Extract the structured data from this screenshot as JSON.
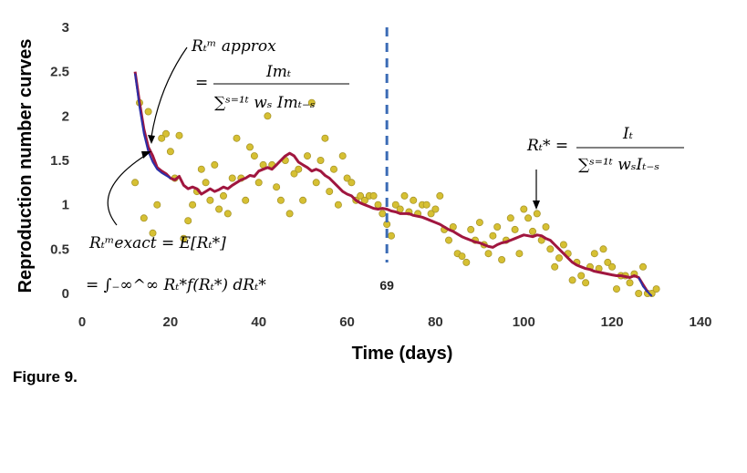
{
  "chart_data": {
    "type": "scatter",
    "xlabel": "Time (days)",
    "ylabel": "Reproduction number curves",
    "xlim": [
      0,
      140
    ],
    "ylim": [
      0,
      3
    ],
    "xticks": [
      "0",
      "20",
      "40",
      "60",
      "80",
      "100",
      "120",
      "140"
    ],
    "yticks": [
      "0",
      "0.5",
      "1",
      "1.5",
      "2",
      "2.5",
      "3"
    ],
    "grid": false,
    "vline": {
      "x": 69,
      "label": "69",
      "color": "#3b6bb5"
    },
    "scatter_points": [
      [
        12,
        1.25
      ],
      [
        13,
        2.15
      ],
      [
        14,
        0.85
      ],
      [
        15,
        2.05
      ],
      [
        16,
        0.68
      ],
      [
        17,
        1.0
      ],
      [
        18,
        1.75
      ],
      [
        19,
        1.8
      ],
      [
        20,
        1.6
      ],
      [
        21,
        1.3
      ],
      [
        22,
        1.78
      ],
      [
        23,
        0.62
      ],
      [
        24,
        0.82
      ],
      [
        25,
        1.0
      ],
      [
        26,
        1.15
      ],
      [
        27,
        1.4
      ],
      [
        28,
        1.25
      ],
      [
        29,
        1.05
      ],
      [
        30,
        1.45
      ],
      [
        31,
        0.95
      ],
      [
        32,
        1.1
      ],
      [
        33,
        0.9
      ],
      [
        34,
        1.3
      ],
      [
        35,
        1.75
      ],
      [
        36,
        1.3
      ],
      [
        37,
        1.05
      ],
      [
        38,
        1.65
      ],
      [
        39,
        1.55
      ],
      [
        40,
        1.25
      ],
      [
        41,
        1.45
      ],
      [
        42,
        2.0
      ],
      [
        43,
        1.45
      ],
      [
        44,
        1.2
      ],
      [
        45,
        1.05
      ],
      [
        46,
        1.5
      ],
      [
        47,
        0.9
      ],
      [
        48,
        1.35
      ],
      [
        49,
        1.4
      ],
      [
        50,
        1.05
      ],
      [
        51,
        1.55
      ],
      [
        52,
        2.15
      ],
      [
        53,
        1.25
      ],
      [
        54,
        1.5
      ],
      [
        55,
        1.75
      ],
      [
        56,
        1.15
      ],
      [
        57,
        1.4
      ],
      [
        58,
        1.0
      ],
      [
        59,
        1.55
      ],
      [
        60,
        1.3
      ],
      [
        61,
        1.25
      ],
      [
        62,
        1.05
      ],
      [
        63,
        1.1
      ],
      [
        64,
        1.05
      ],
      [
        65,
        1.1
      ],
      [
        66,
        1.1
      ],
      [
        67,
        1.0
      ],
      [
        68,
        0.9
      ],
      [
        69,
        0.78
      ],
      [
        70,
        0.65
      ],
      [
        71,
        1.0
      ],
      [
        72,
        0.95
      ],
      [
        73,
        1.1
      ],
      [
        74,
        0.92
      ],
      [
        75,
        1.05
      ],
      [
        76,
        0.9
      ],
      [
        77,
        1.0
      ],
      [
        78,
        1.0
      ],
      [
        79,
        0.9
      ],
      [
        80,
        0.95
      ],
      [
        81,
        1.1
      ],
      [
        82,
        0.72
      ],
      [
        83,
        0.6
      ],
      [
        84,
        0.75
      ],
      [
        85,
        0.45
      ],
      [
        86,
        0.42
      ],
      [
        87,
        0.35
      ],
      [
        88,
        0.72
      ],
      [
        89,
        0.6
      ],
      [
        90,
        0.8
      ],
      [
        91,
        0.55
      ],
      [
        92,
        0.45
      ],
      [
        93,
        0.65
      ],
      [
        94,
        0.75
      ],
      [
        95,
        0.38
      ],
      [
        96,
        0.6
      ],
      [
        97,
        0.85
      ],
      [
        98,
        0.72
      ],
      [
        99,
        0.45
      ],
      [
        100,
        0.95
      ],
      [
        101,
        0.85
      ],
      [
        102,
        0.7
      ],
      [
        103,
        0.9
      ],
      [
        104,
        0.6
      ],
      [
        105,
        0.75
      ],
      [
        106,
        0.5
      ],
      [
        107,
        0.3
      ],
      [
        108,
        0.4
      ],
      [
        109,
        0.55
      ],
      [
        110,
        0.45
      ],
      [
        111,
        0.15
      ],
      [
        112,
        0.35
      ],
      [
        113,
        0.2
      ],
      [
        114,
        0.12
      ],
      [
        115,
        0.3
      ],
      [
        116,
        0.45
      ],
      [
        117,
        0.28
      ],
      [
        118,
        0.5
      ],
      [
        119,
        0.35
      ],
      [
        120,
        0.3
      ],
      [
        121,
        0.05
      ],
      [
        122,
        0.2
      ],
      [
        123,
        0.2
      ],
      [
        124,
        0.12
      ],
      [
        125,
        0.22
      ],
      [
        126,
        0.0
      ],
      [
        127,
        0.3
      ],
      [
        128,
        0.0
      ],
      [
        129,
        0.0
      ],
      [
        130,
        0.05
      ]
    ],
    "series": [
      {
        "color": "#a0163f",
        "points": [
          [
            12,
            2.5
          ],
          [
            13,
            2.15
          ],
          [
            14,
            1.85
          ],
          [
            15,
            1.65
          ],
          [
            16,
            1.55
          ],
          [
            17,
            1.42
          ],
          [
            18,
            1.38
          ],
          [
            19,
            1.35
          ],
          [
            20,
            1.3
          ],
          [
            21,
            1.28
          ],
          [
            22,
            1.32
          ],
          [
            23,
            1.22
          ],
          [
            24,
            1.18
          ],
          [
            25,
            1.2
          ],
          [
            26,
            1.18
          ],
          [
            27,
            1.12
          ],
          [
            28,
            1.15
          ],
          [
            29,
            1.18
          ],
          [
            30,
            1.15
          ],
          [
            31,
            1.17
          ],
          [
            32,
            1.2
          ],
          [
            33,
            1.18
          ],
          [
            34,
            1.22
          ],
          [
            35,
            1.25
          ],
          [
            36,
            1.28
          ],
          [
            37,
            1.3
          ],
          [
            38,
            1.33
          ],
          [
            39,
            1.32
          ],
          [
            40,
            1.38
          ],
          [
            41,
            1.4
          ],
          [
            42,
            1.42
          ],
          [
            43,
            1.4
          ],
          [
            44,
            1.45
          ],
          [
            45,
            1.5
          ],
          [
            46,
            1.55
          ],
          [
            47,
            1.58
          ],
          [
            48,
            1.55
          ],
          [
            49,
            1.48
          ],
          [
            50,
            1.45
          ],
          [
            51,
            1.42
          ],
          [
            52,
            1.38
          ],
          [
            53,
            1.4
          ],
          [
            54,
            1.38
          ],
          [
            55,
            1.33
          ],
          [
            56,
            1.3
          ],
          [
            57,
            1.25
          ],
          [
            58,
            1.2
          ],
          [
            59,
            1.15
          ],
          [
            60,
            1.12
          ],
          [
            61,
            1.1
          ],
          [
            62,
            1.05
          ],
          [
            63,
            1.02
          ],
          [
            64,
            1.0
          ],
          [
            65,
            0.98
          ],
          [
            66,
            0.96
          ],
          [
            67,
            0.95
          ],
          [
            68,
            0.96
          ],
          [
            69,
            0.95
          ],
          [
            70,
            0.93
          ],
          [
            71,
            0.92
          ],
          [
            72,
            0.9
          ],
          [
            73,
            0.9
          ],
          [
            74,
            0.9
          ],
          [
            75,
            0.88
          ],
          [
            76,
            0.87
          ],
          [
            77,
            0.86
          ],
          [
            78,
            0.84
          ],
          [
            79,
            0.82
          ],
          [
            80,
            0.8
          ],
          [
            81,
            0.78
          ],
          [
            82,
            0.75
          ],
          [
            83,
            0.72
          ],
          [
            84,
            0.7
          ],
          [
            85,
            0.67
          ],
          [
            86,
            0.64
          ],
          [
            87,
            0.62
          ],
          [
            88,
            0.6
          ],
          [
            89,
            0.58
          ],
          [
            90,
            0.57
          ],
          [
            91,
            0.55
          ],
          [
            92,
            0.53
          ],
          [
            93,
            0.52
          ],
          [
            94,
            0.55
          ],
          [
            95,
            0.57
          ],
          [
            96,
            0.58
          ],
          [
            97,
            0.6
          ],
          [
            98,
            0.62
          ],
          [
            99,
            0.64
          ],
          [
            100,
            0.66
          ],
          [
            101,
            0.65
          ],
          [
            102,
            0.64
          ],
          [
            103,
            0.66
          ],
          [
            104,
            0.65
          ],
          [
            105,
            0.62
          ],
          [
            106,
            0.6
          ],
          [
            107,
            0.55
          ],
          [
            108,
            0.5
          ],
          [
            109,
            0.45
          ],
          [
            110,
            0.4
          ],
          [
            111,
            0.35
          ],
          [
            112,
            0.32
          ],
          [
            113,
            0.3
          ],
          [
            114,
            0.28
          ],
          [
            115,
            0.27
          ],
          [
            116,
            0.25
          ],
          [
            117,
            0.24
          ],
          [
            118,
            0.23
          ],
          [
            119,
            0.22
          ],
          [
            120,
            0.21
          ],
          [
            121,
            0.2
          ],
          [
            122,
            0.2
          ],
          [
            123,
            0.19
          ],
          [
            124,
            0.18
          ],
          [
            125,
            0.2
          ],
          [
            126,
            0.18
          ],
          [
            127,
            0.1
          ],
          [
            128,
            0.02
          ]
        ]
      },
      {
        "color": "#2b2fa8",
        "points": [
          [
            12,
            2.48
          ],
          [
            13,
            2.1
          ],
          [
            14,
            1.8
          ],
          [
            15,
            1.6
          ],
          [
            16,
            1.48
          ],
          [
            17,
            1.4
          ],
          [
            18,
            1.36
          ],
          [
            19,
            1.33
          ],
          [
            20,
            1.3
          ],
          [
            126,
            0.18
          ],
          [
            127,
            0.08
          ],
          [
            128,
            0.02
          ],
          [
            129,
            -0.03
          ]
        ]
      }
    ],
    "annotations": {
      "approx_line1": "Rₜᵐ approx",
      "approx_line2_num": "Imₜ",
      "approx_line2_den": "∑ˢ⁼¹ᵗ wₛ  Imₜ₋ₛ",
      "star_lhs": "Rₜ* =",
      "star_num": "Iₜ",
      "star_den": "∑ˢ⁼¹ᵗ wₛIₜ₋ₛ",
      "exact_line1": "Rₜᵐexact = E[Rₜ*]",
      "exact_line2": "= ∫₋∞^∞ Rₜ*f(Rₜ*) dRₜ*"
    }
  },
  "figure_caption": "Figure 9.",
  "colors": {
    "scatter_fill": "#d6c033",
    "scatter_stroke": "#a8962a"
  }
}
